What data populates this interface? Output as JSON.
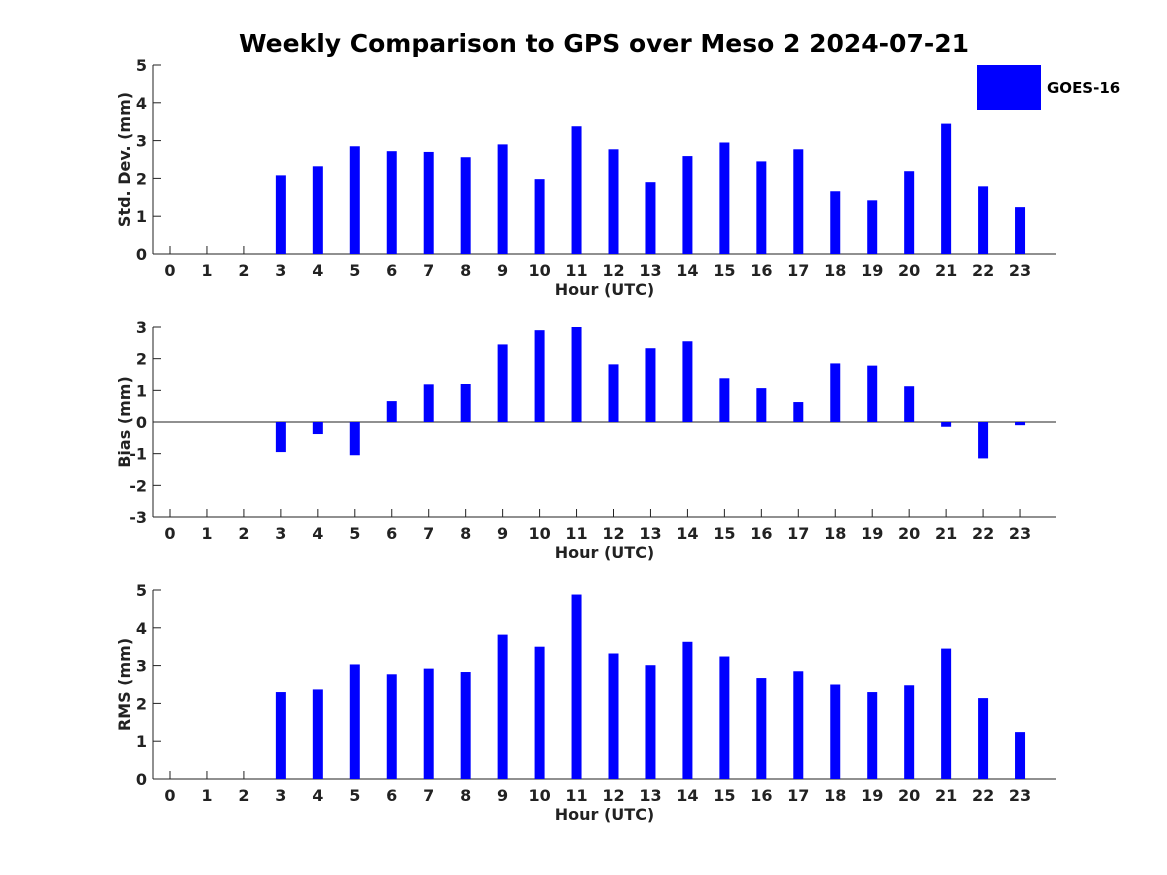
{
  "chart_data": {
    "type": "bar",
    "title": "Weekly Comparison to GPS over Meso 2 2024-07-21",
    "legend": {
      "label": "GOES-16",
      "color": "#0000ff",
      "placement": "top-right"
    },
    "bar_color": "#0000ff",
    "categories": [
      "0",
      "1",
      "2",
      "3",
      "4",
      "5",
      "6",
      "7",
      "8",
      "9",
      "10",
      "11",
      "12",
      "13",
      "14",
      "15",
      "16",
      "17",
      "18",
      "19",
      "20",
      "21",
      "22",
      "23"
    ],
    "panels": [
      {
        "ylabel": "Std. Dev. (mm)",
        "xlabel": "Hour (UTC)",
        "ylim": [
          0,
          5
        ],
        "yticks": [
          0,
          1,
          2,
          3,
          4,
          5
        ],
        "values": [
          0,
          0,
          0,
          2.08,
          2.32,
          2.85,
          2.72,
          2.7,
          2.56,
          2.9,
          1.98,
          3.38,
          2.77,
          1.9,
          2.59,
          2.95,
          2.45,
          2.77,
          1.66,
          1.42,
          2.19,
          3.45,
          1.79,
          1.24
        ]
      },
      {
        "ylabel": "Bias (mm)",
        "xlabel": "Hour (UTC)",
        "ylim": [
          -3,
          3
        ],
        "yticks": [
          -3,
          -2,
          -1,
          0,
          1,
          2,
          3
        ],
        "values": [
          0,
          0,
          0,
          -0.95,
          -0.38,
          -1.05,
          0.66,
          1.19,
          1.2,
          2.45,
          2.9,
          3.0,
          1.82,
          2.33,
          2.55,
          1.38,
          1.07,
          0.63,
          1.85,
          1.78,
          1.13,
          -0.15,
          -1.15,
          -0.1
        ]
      },
      {
        "ylabel": "RMS (mm)",
        "xlabel": "Hour (UTC)",
        "ylim": [
          0,
          5
        ],
        "yticks": [
          0,
          1,
          2,
          3,
          4,
          5
        ],
        "values": [
          0,
          0,
          0,
          2.3,
          2.37,
          3.03,
          2.77,
          2.92,
          2.83,
          3.82,
          3.5,
          4.88,
          3.32,
          3.01,
          3.63,
          3.24,
          2.67,
          2.85,
          2.5,
          2.3,
          2.48,
          3.45,
          2.14,
          1.24
        ]
      }
    ]
  }
}
